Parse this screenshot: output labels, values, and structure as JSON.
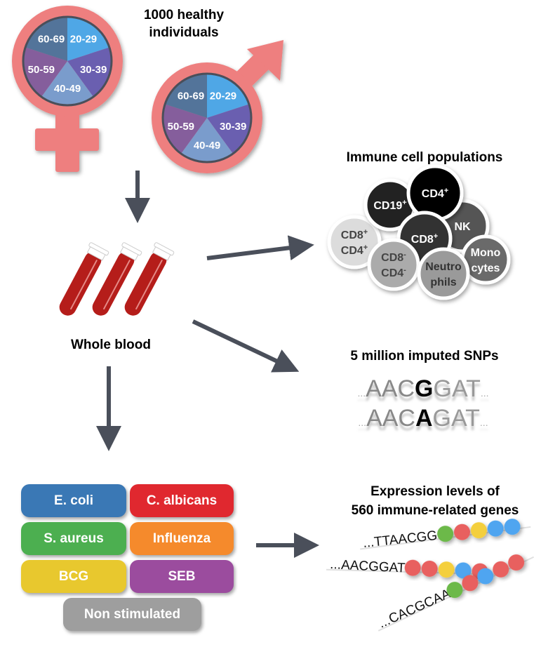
{
  "title": "1000 healthy individuals",
  "title_lines": [
    "1000 healthy",
    "individuals"
  ],
  "age_groups": [
    "20-29",
    "30-39",
    "40-49",
    "50-59",
    "60-69"
  ],
  "age_colors": [
    "#4fa7e6",
    "#6a5fb0",
    "#7a9ccc",
    "#855e9c",
    "#53749a"
  ],
  "symbol_color": "#ee7f7f",
  "arrow_color": "#4a4f5a",
  "blood_label": "Whole blood",
  "immune": {
    "title": "Immune cell populations",
    "cells": [
      {
        "label": [
          "CD8",
          "CD4"
        ],
        "sup": [
          "+",
          "+"
        ],
        "fill": "#dcdcdc",
        "text": "#444"
      },
      {
        "label": [
          "CD19"
        ],
        "sup": [
          "+"
        ],
        "fill": "#222222",
        "text": "#fff"
      },
      {
        "label": [
          "NK"
        ],
        "sup": [
          ""
        ],
        "fill": "#555555",
        "text": "#fff"
      },
      {
        "label": [
          "CD4"
        ],
        "sup": [
          "+"
        ],
        "fill": "#000000",
        "text": "#fff"
      },
      {
        "label": [
          "CD8"
        ],
        "sup": [
          "+"
        ],
        "fill": "#333333",
        "text": "#fff"
      },
      {
        "label": [
          "CD8",
          "CD4"
        ],
        "sup": [
          "-",
          "-"
        ],
        "fill": "#ababab",
        "text": "#444"
      },
      {
        "label": [
          "Mono",
          "cytes"
        ],
        "sup": [
          "",
          ""
        ],
        "fill": "#6a6a6a",
        "text": "#fff"
      },
      {
        "label": [
          "Neutro",
          "phils"
        ],
        "sup": [
          "",
          ""
        ],
        "fill": "#9a9a9a",
        "text": "#333"
      }
    ]
  },
  "snps": {
    "title": "5 million imputed SNPs",
    "rows": [
      {
        "prefix": "...",
        "before": "AAC",
        "variant": "G",
        "after": "GAT",
        "suffix": "..."
      },
      {
        "prefix": "...",
        "before": "AAC",
        "variant": "A",
        "after": "GAT",
        "suffix": "..."
      }
    ]
  },
  "stimuli": [
    {
      "label": "E. coli",
      "color": "#3a78b5"
    },
    {
      "label": "C. albicans",
      "color": "#e0282f"
    },
    {
      "label": "S. aureus",
      "color": "#4caf50"
    },
    {
      "label": "Influenza",
      "color": "#f58a2c"
    },
    {
      "label": "BCG",
      "color": "#e8c82e"
    },
    {
      "label": "SEB",
      "color": "#9b4c9e"
    },
    {
      "label": "Non stimulated",
      "color": "#9e9e9e"
    }
  ],
  "expression": {
    "title_lines": [
      "Expression levels of",
      "560 immune-related genes"
    ],
    "bead_colors": {
      "green": "#6cb94a",
      "red": "#e8605e",
      "yellow": "#f4cf3c",
      "blue": "#50a5f0"
    },
    "strands": [
      {
        "seq": "...TTAACGG",
        "beads": [
          "green",
          "red",
          "yellow",
          "blue",
          "blue"
        ]
      },
      {
        "seq": "...AACGGAT",
        "beads": [
          "red",
          "red",
          "yellow",
          "blue",
          "red"
        ]
      },
      {
        "seq": "...CACGCAA",
        "beads": [
          "green",
          "red",
          "blue",
          "red",
          "red"
        ]
      }
    ]
  }
}
